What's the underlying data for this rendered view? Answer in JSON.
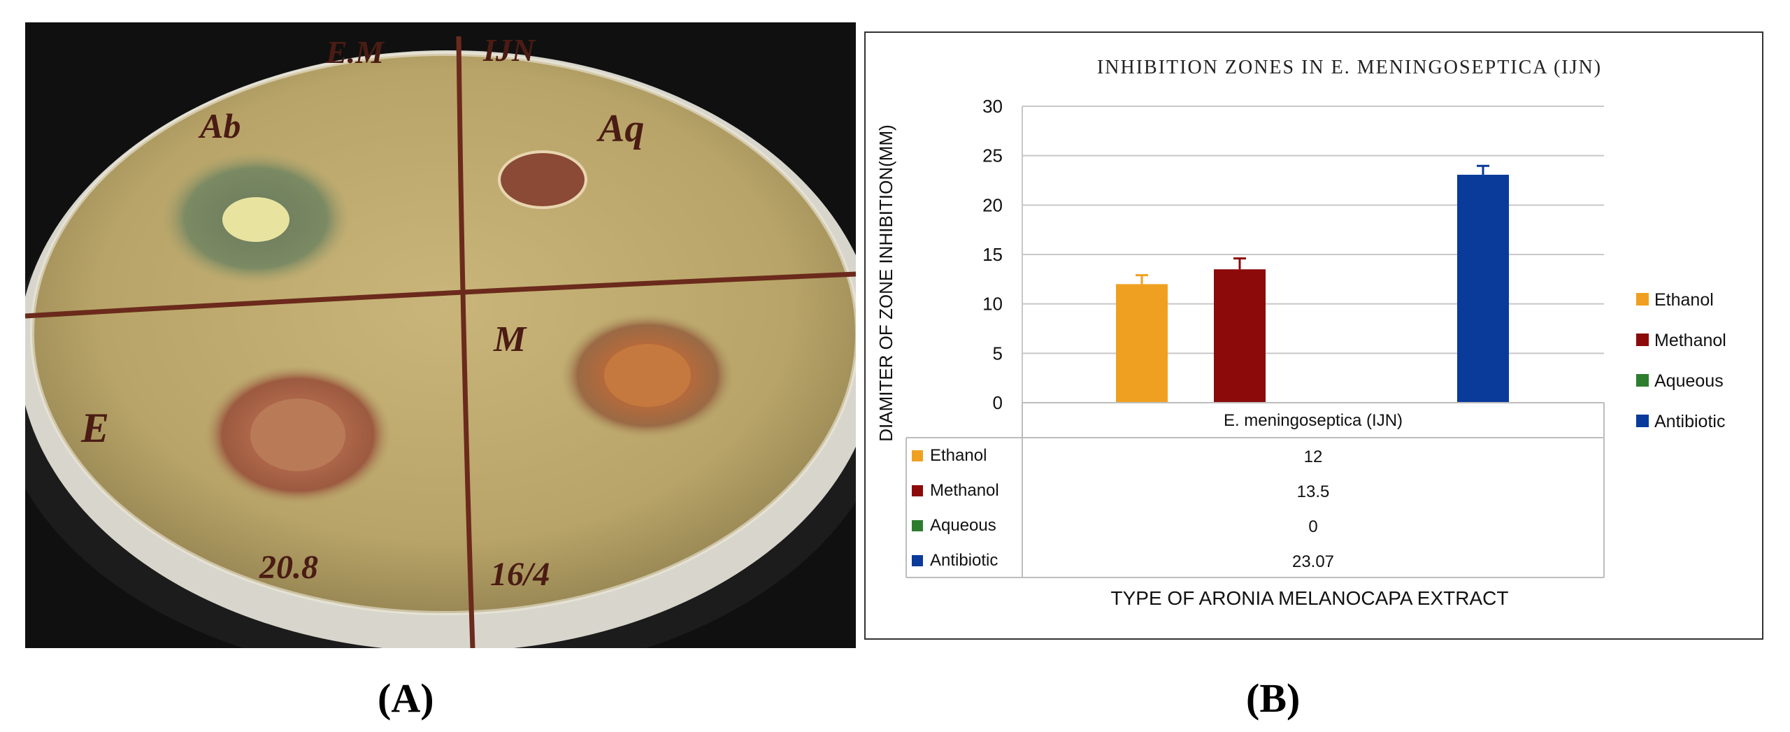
{
  "panel_labels": {
    "a": "(A)",
    "b": "(B)"
  },
  "photo": {
    "description_icon": "petri-dish-photo",
    "plate_labels": {
      "top_left_header": "E.M",
      "top_right_header": "IJN",
      "quadrant_antibiotic": "Ab",
      "quadrant_aqueous": "Aq",
      "quadrant_methanol": "M",
      "quadrant_ethanol": "E",
      "bottom_left": "20.8",
      "bottom_right": "16/4"
    }
  },
  "chart_data": {
    "type": "bar",
    "title": "INHIBITION ZONES IN E. MENINGOSEPTICA (IJN)",
    "xlabel": "TYPE OF ARONIA MELANOCAPA EXTRACT",
    "ylabel": "DIAMITER OF ZONE INHIBITION(MM)",
    "ylim": [
      0,
      30
    ],
    "yticks": [
      "0",
      "5",
      "10",
      "15",
      "20",
      "25",
      "30"
    ],
    "category": "E. meningoseptica (IJN)",
    "grid": true,
    "legend_position": "right",
    "series": [
      {
        "name": "Ethanol",
        "value": 12,
        "display": "12",
        "error": 0.9,
        "color": "#F0A020"
      },
      {
        "name": "Methanol",
        "value": 13.5,
        "display": "13.5",
        "error": 1.1,
        "color": "#8C0A0A"
      },
      {
        "name": "Aqueous",
        "value": 0,
        "display": "0",
        "error": 0,
        "color": "#2E7D2E"
      },
      {
        "name": "Antibiotic",
        "value": 23.07,
        "display": "23.07",
        "error": 0.9,
        "color": "#0A3A9A"
      }
    ]
  }
}
